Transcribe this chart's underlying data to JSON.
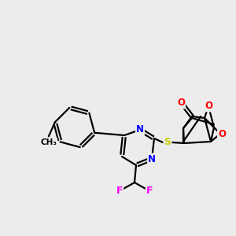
{
  "bg_color": "#ececec",
  "bond_color": "#000000",
  "atom_colors": {
    "N": "#0000ff",
    "O": "#ff0000",
    "S": "#cccc00",
    "F": "#ff00ff",
    "C": "#000000"
  },
  "figsize": [
    3.0,
    3.0
  ],
  "dpi": 100
}
